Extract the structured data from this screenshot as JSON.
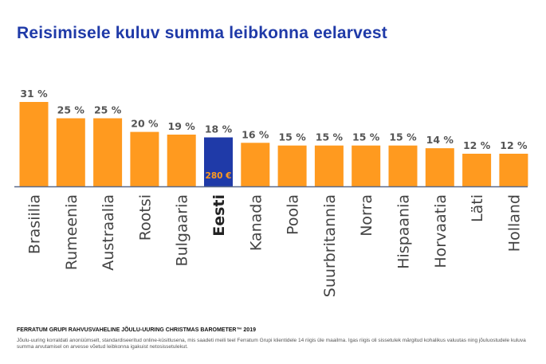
{
  "title": "Reisimisele kuluv summa leibkonna eelarvest",
  "chart_data": {
    "type": "bar",
    "categories": [
      "Brasiilia",
      "Rumeenia",
      "Austraalia",
      "Rootsi",
      "Bulgaaria",
      "Eesti",
      "Kanada",
      "Poola",
      "Suurbritannia",
      "Norra",
      "Hispaania",
      "Horvaatia",
      "Läti",
      "Holland"
    ],
    "values": [
      31,
      25,
      25,
      20,
      19,
      18,
      16,
      15,
      15,
      15,
      15,
      14,
      12,
      12
    ],
    "value_labels": [
      "31 %",
      "25 %",
      "25 %",
      "20 %",
      "19 %",
      "18 %",
      "16 %",
      "15 %",
      "15 %",
      "15 %",
      "15 %",
      "14 %",
      "12 %",
      "12 %"
    ],
    "unit": "%",
    "highlight": {
      "category": "Eesti",
      "annotation": "280 €",
      "color": "#1f3aa8"
    },
    "bar_color": "#ff9a1f",
    "axis_color": "#5a6a8a",
    "ylim": [
      0,
      31
    ],
    "title": "Reisimisele kuluv summa leibkonna eelarvest",
    "xlabel": "",
    "ylabel": ""
  },
  "footer": {
    "source_title": "FERRATUM GRUPI RAHVUSVAHELINE JÕULU-UURING CHRISTMAS BAROMETER™ 2019",
    "note": "Jõulu-uuring korraldati anonüümselt, standardiseeritud online-küsitlusena, mis saadeti meili teel Ferratum Grupi klientidele 14 riigis üle maailma. Igas riigis oli sissetulek märgitud kohalikus valuutas ning jõuluostudele kuluva summa arvutamisel on arvesse võetud leibkonna igakuist netosissetulekut."
  }
}
